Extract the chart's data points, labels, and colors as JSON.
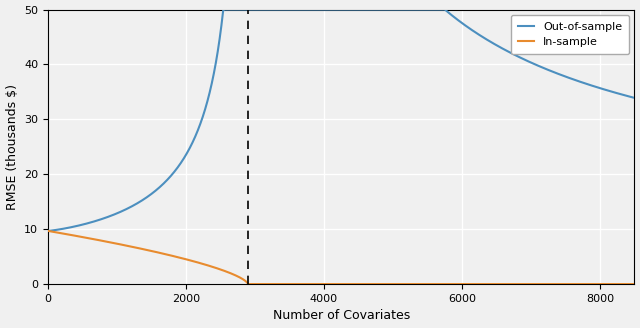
{
  "interpolation_threshold": 2900,
  "x_max": 8500,
  "y_max": 50,
  "y_start": 9.7,
  "y_asymptote": 9.5,
  "oos_color": "#4C8FBF",
  "ins_color": "#E88B2E",
  "xlabel": "Number of Covariates",
  "ylabel": "RMSE (thousands $)",
  "legend_labels": [
    "Out-of-sample",
    "In-sample"
  ],
  "xticks": [
    0,
    2000,
    4000,
    6000,
    8000
  ],
  "yticks": [
    0,
    10,
    20,
    30,
    40,
    50
  ],
  "background_color": "#f0f0f0",
  "grid_color": "#ffffff",
  "figsize": [
    6.4,
    3.28
  ],
  "dpi": 100
}
